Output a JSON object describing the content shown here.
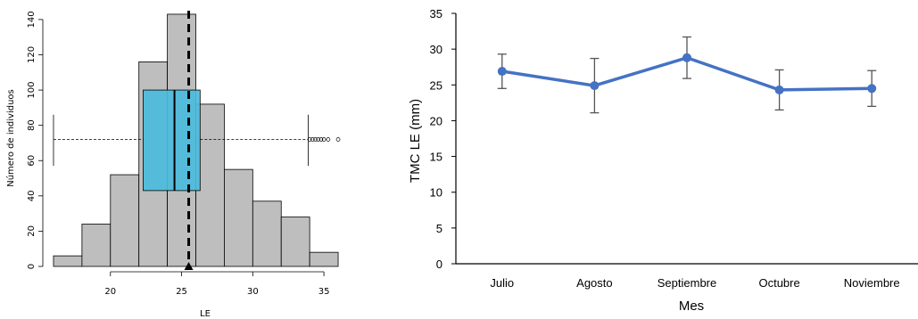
{
  "chart_data": [
    {
      "type": "bar",
      "subtype": "histogram with boxplot overlay",
      "title": "",
      "xlabel": "LE",
      "ylabel": "Número de individuos",
      "xlim": [
        15.5,
        37
      ],
      "ylim": [
        0,
        145
      ],
      "x_ticks": [
        20,
        25,
        30,
        35
      ],
      "y_ticks": [
        0,
        20,
        40,
        60,
        80,
        100,
        120,
        140
      ],
      "bins": [
        {
          "from": 16,
          "to": 18,
          "count": 6
        },
        {
          "from": 18,
          "to": 20,
          "count": 24
        },
        {
          "from": 20,
          "to": 22,
          "count": 52
        },
        {
          "from": 22,
          "to": 24,
          "count": 116
        },
        {
          "from": 24,
          "to": 26,
          "count": 143
        },
        {
          "from": 26,
          "to": 28,
          "count": 92
        },
        {
          "from": 28,
          "to": 30,
          "count": 55
        },
        {
          "from": 30,
          "to": 32,
          "count": 37
        },
        {
          "from": 32,
          "to": 34,
          "count": 28
        },
        {
          "from": 34,
          "to": 36,
          "count": 8
        }
      ],
      "bar_color": "#bebebe",
      "boxplot": {
        "whisker_low": 16,
        "q1": 22.3,
        "median": 24.5,
        "q3": 26.3,
        "whisker_high": 33.9,
        "outliers": [
          34.0,
          34.2,
          34.4,
          34.6,
          34.8,
          35.0,
          35.3,
          36.0
        ],
        "color": "#4bbcdc",
        "box_count_range": [
          43,
          100
        ],
        "whisker_count_level": 72,
        "whisker_end_range": [
          57,
          86
        ]
      },
      "mean_line_x": 25.5,
      "mean_marker": "triangle"
    },
    {
      "type": "line",
      "title": "",
      "xlabel": "Mes",
      "ylabel": "TMC LE (mm)",
      "categories": [
        "Julio",
        "Agosto",
        "Septiembre",
        "Octubre",
        "Noviembre"
      ],
      "ylim": [
        0,
        35
      ],
      "y_ticks": [
        0,
        5,
        10,
        15,
        20,
        25,
        30,
        35
      ],
      "series": [
        {
          "values": [
            26.9,
            24.9,
            28.8,
            24.3,
            24.5
          ],
          "error": [
            2.4,
            3.8,
            2.9,
            2.8,
            2.5
          ],
          "color": "#4472c4"
        }
      ],
      "error_bar_color": "#555555",
      "grid": false,
      "legend": "none"
    }
  ]
}
